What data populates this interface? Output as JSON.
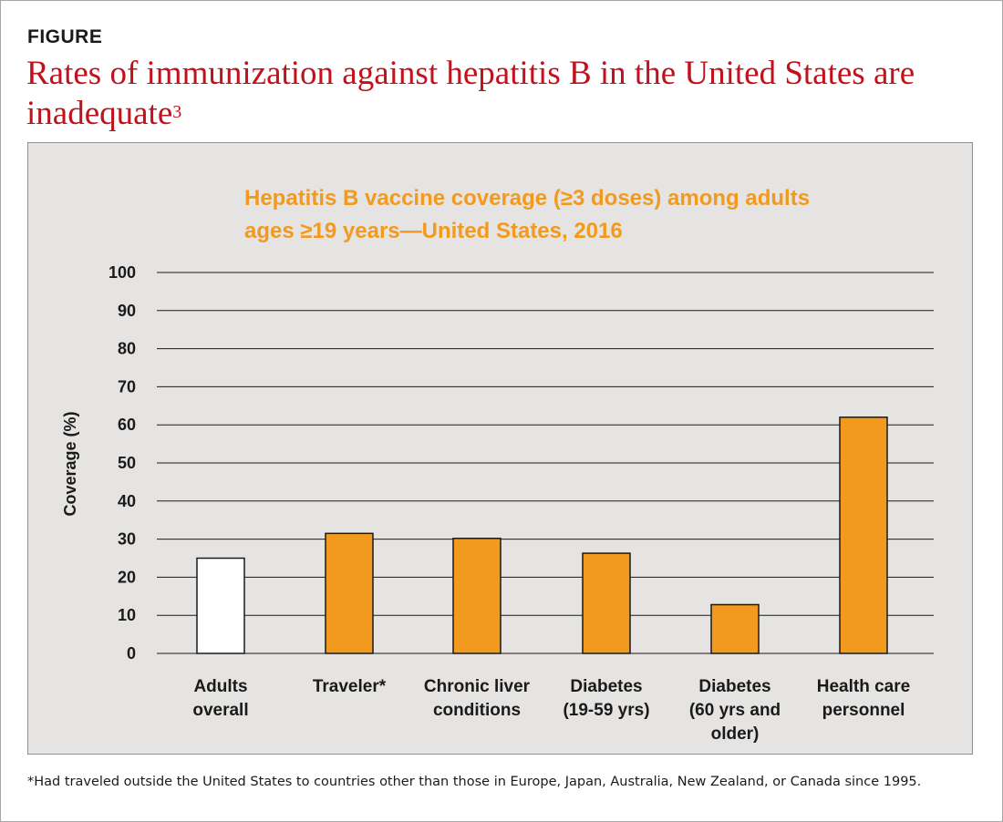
{
  "figure_label": "FIGURE",
  "title_main": "Rates of immunization against hepatitis B in the United States are inadequate",
  "title_superscript": "3",
  "footnote": "*Had traveled outside the United States to countries other than those in Europe, Japan, Australia, New Zealand, or Canada since 1995.",
  "colors": {
    "title": "#c0121c",
    "chart_title": "#f29a1e",
    "bar_highlight": "#f29a1e",
    "bar_baseline": "#ffffff",
    "panel_bg": "#e5e4e2"
  },
  "chart_data": {
    "type": "bar",
    "title": "Hepatitis B vaccine coverage (≥3 doses) among adults ages ≥19 years—United States, 2016",
    "title_lines": [
      "Hepatitis B vaccine coverage (≥3 doses) among adults",
      "ages ≥19 years—United States, 2016"
    ],
    "xlabel": "",
    "ylabel": "Coverage (%)",
    "ylim": [
      0,
      100
    ],
    "yticks": [
      0,
      10,
      20,
      30,
      40,
      50,
      60,
      70,
      80,
      90,
      100
    ],
    "grid": true,
    "categories": [
      [
        "Adults",
        "overall"
      ],
      [
        "Traveler*"
      ],
      [
        "Chronic liver",
        "conditions"
      ],
      [
        "Diabetes",
        "(19-59 yrs)"
      ],
      [
        "Diabetes",
        "(60 yrs and",
        "older)"
      ],
      [
        "Health care",
        "personnel"
      ]
    ],
    "values": [
      25.0,
      31.5,
      30.2,
      26.3,
      12.8,
      62.0
    ],
    "bar_colors": [
      "#ffffff",
      "#f29a1e",
      "#f29a1e",
      "#f29a1e",
      "#f29a1e",
      "#f29a1e"
    ]
  }
}
